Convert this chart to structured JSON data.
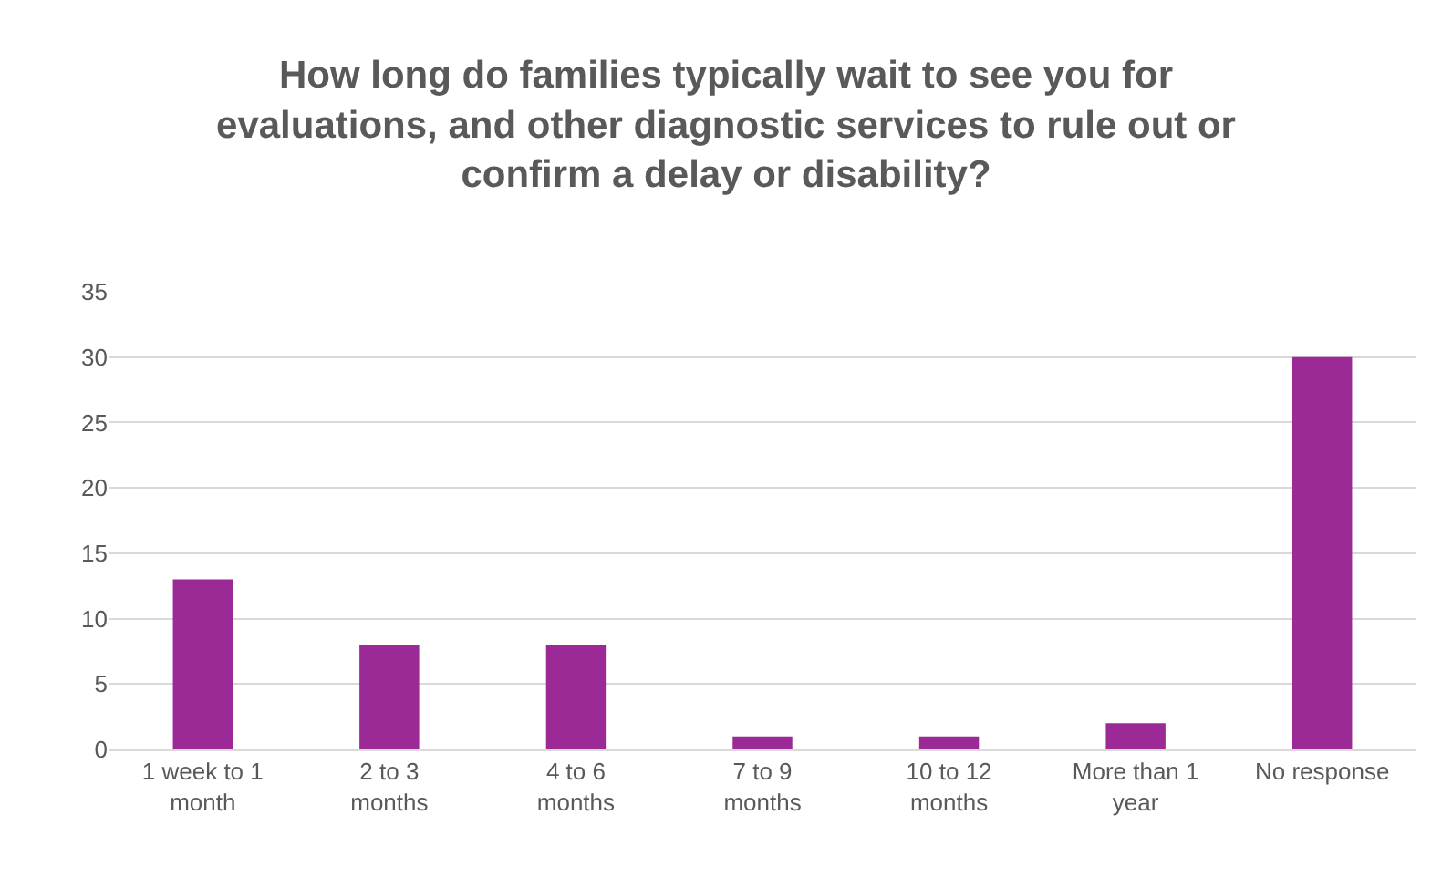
{
  "chart_data": {
    "type": "bar",
    "title": "How long do families typically wait to see you for evaluations, and other diagnostic services to rule out or confirm a delay or disability?",
    "categories": [
      "1 week to 1 month",
      "2 to 3 months",
      "4 to 6 months",
      "7 to 9 months",
      "10 to 12 months",
      "More than 1 year",
      "No response"
    ],
    "values": [
      13,
      8,
      8,
      1,
      1,
      2,
      30
    ],
    "color": "#9b2a96",
    "ylim": [
      0,
      35
    ],
    "yticks": [
      0,
      5,
      10,
      15,
      20,
      25,
      30,
      35
    ],
    "grid": "y"
  }
}
